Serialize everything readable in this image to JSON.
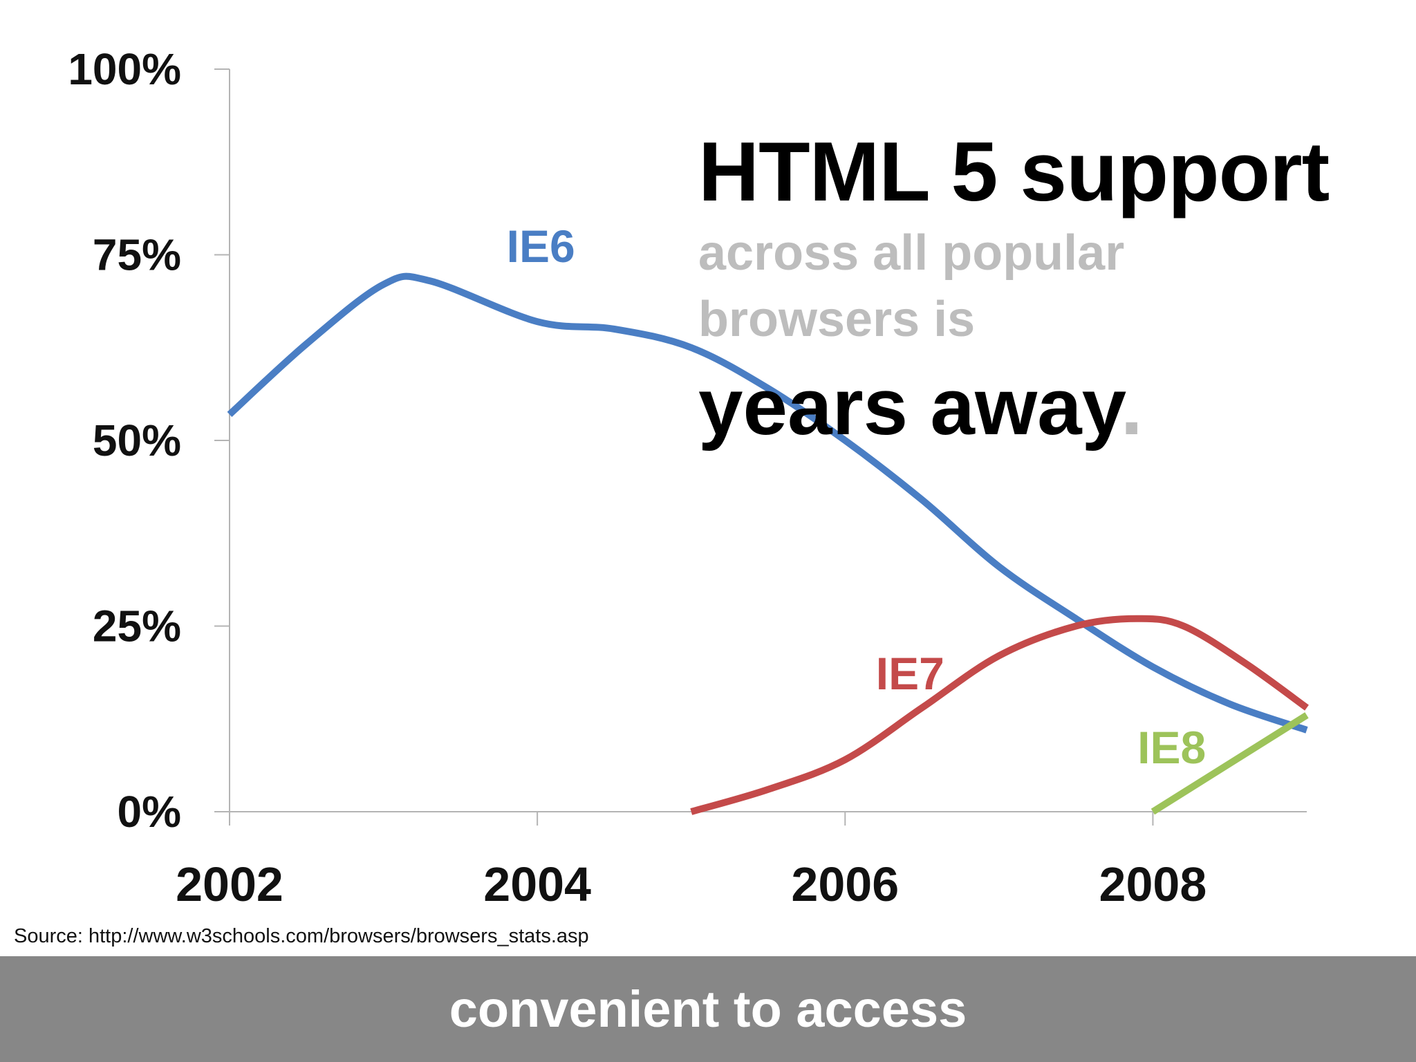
{
  "chart_data": {
    "type": "line",
    "x_ticks": [
      "2002",
      "2004",
      "2006",
      "2008"
    ],
    "y_ticks": [
      "0%",
      "25%",
      "50%",
      "75%",
      "100%"
    ],
    "xlim": [
      2002,
      2009
    ],
    "ylim": [
      0,
      100
    ],
    "grid": false,
    "series": [
      {
        "name": "IE6",
        "color": "#4a7ec4",
        "points": [
          [
            2002.0,
            53.5
          ],
          [
            2002.5,
            63
          ],
          [
            2003.0,
            71
          ],
          [
            2003.3,
            71.5
          ],
          [
            2004.0,
            66
          ],
          [
            2004.5,
            65
          ],
          [
            2005.0,
            62.5
          ],
          [
            2005.5,
            57
          ],
          [
            2006.0,
            50
          ],
          [
            2006.5,
            42
          ],
          [
            2007.0,
            33
          ],
          [
            2007.5,
            26
          ],
          [
            2008.0,
            19.5
          ],
          [
            2008.5,
            14.5
          ],
          [
            2009.0,
            11
          ]
        ],
        "label_position": [
          2003.8,
          74
        ]
      },
      {
        "name": "IE7",
        "color": "#c44a4a",
        "points": [
          [
            2005.0,
            0
          ],
          [
            2005.5,
            3
          ],
          [
            2006.0,
            7
          ],
          [
            2006.5,
            14
          ],
          [
            2007.0,
            21
          ],
          [
            2007.5,
            25
          ],
          [
            2007.9,
            26
          ],
          [
            2008.2,
            25
          ],
          [
            2008.6,
            20
          ],
          [
            2009.0,
            14
          ]
        ],
        "label_position": [
          2006.2,
          16.5
        ]
      },
      {
        "name": "IE8",
        "color": "#9dc35a",
        "points": [
          [
            2008.0,
            0
          ],
          [
            2009.0,
            13
          ]
        ],
        "label_position": [
          2007.9,
          6.5
        ]
      }
    ]
  },
  "headline": {
    "line1": "HTML 5 support",
    "line2": "across all popular",
    "line2b": "browsers is",
    "line3": "years away",
    "line3_period": "."
  },
  "source": "Source: http://www.w3schools.com/browsers/browsers_stats.asp",
  "footer": {
    "text": "convenient to access",
    "background": "#878787"
  },
  "colors": {
    "axis": "#b4b4b4",
    "text": "#111111",
    "muted_text": "#bdbdbd"
  }
}
